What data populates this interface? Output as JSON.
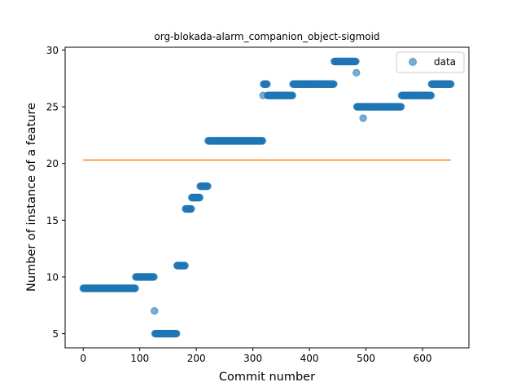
{
  "chart_data": {
    "type": "scatter",
    "title": "org-blokada-alarm_companion_object-sigmoid",
    "xlabel": "Commit number",
    "ylabel": "Number of instance of a feature",
    "xlim": [
      -32,
      682
    ],
    "ylim": [
      3.75,
      30.25
    ],
    "xticks": [
      0,
      100,
      200,
      300,
      400,
      500,
      600
    ],
    "yticks": [
      5,
      10,
      15,
      20,
      25,
      30
    ],
    "grid": false,
    "legend": {
      "placement": "top-right",
      "entries": [
        "data"
      ]
    },
    "colors": {
      "data": "#1f77b4",
      "fit": "#ff7f0e"
    },
    "series": [
      {
        "name": "data",
        "kind": "scatter",
        "segments": [
          {
            "x_start": 0,
            "x_end": 92,
            "y": 9
          },
          {
            "x_start": 93,
            "x_end": 125,
            "y": 10
          },
          {
            "x": 126,
            "y": 7
          },
          {
            "x_start": 127,
            "x_end": 165,
            "y": 5
          },
          {
            "x_start": 166,
            "x_end": 180,
            "y": 11
          },
          {
            "x_start": 181,
            "x_end": 191,
            "y": 16
          },
          {
            "x_start": 192,
            "x_end": 206,
            "y": 17
          },
          {
            "x_start": 207,
            "x_end": 220,
            "y": 18
          },
          {
            "x_start": 221,
            "x_end": 317,
            "y": 22
          },
          {
            "x": 318,
            "y": 26
          },
          {
            "x_start": 319,
            "x_end": 325,
            "y": 27
          },
          {
            "x_start": 326,
            "x_end": 370,
            "y": 26
          },
          {
            "x_start": 371,
            "x_end": 443,
            "y": 27
          },
          {
            "x_start": 444,
            "x_end": 482,
            "y": 29
          },
          {
            "x": 483,
            "y": 28
          },
          {
            "x_start": 484,
            "x_end": 494,
            "y": 25
          },
          {
            "x": 495,
            "y": 24
          },
          {
            "x_start": 496,
            "x_end": 562,
            "y": 25
          },
          {
            "x_start": 563,
            "x_end": 615,
            "y": 26
          },
          {
            "x_start": 616,
            "x_end": 650,
            "y": 27
          }
        ]
      },
      {
        "name": "",
        "kind": "line",
        "x": [
          0,
          650
        ],
        "y": [
          20.3,
          20.3
        ]
      }
    ]
  }
}
